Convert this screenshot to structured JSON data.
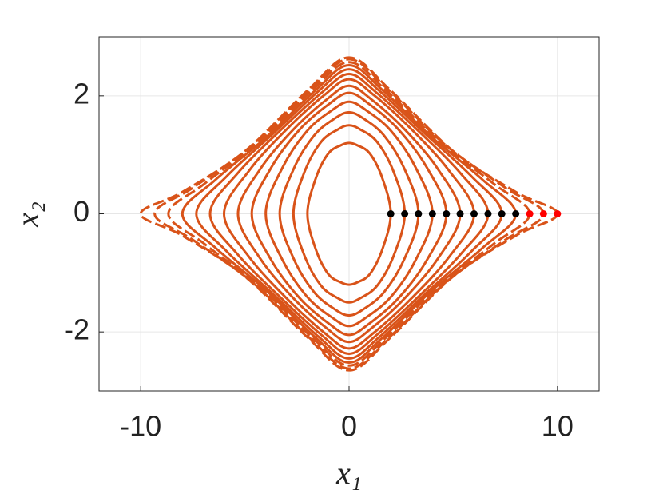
{
  "chart_data": {
    "type": "line",
    "xlabel": "x₁",
    "ylabel": "x₂",
    "xlim": [
      -12,
      12
    ],
    "ylim": [
      -3,
      3
    ],
    "xticks": [
      -10,
      0,
      10
    ],
    "yticks": [
      -2,
      0,
      2
    ],
    "grid": true,
    "series": [
      {
        "color": "#d95319",
        "x": [
          2,
          1.6,
          1,
          0.4,
          0,
          -0.4,
          -1,
          -1.6,
          -2,
          -1.6,
          -1,
          -0.4,
          0,
          0.4,
          1,
          1.6
        ],
        "y": [
          0,
          0.6,
          1.02,
          1.16,
          1.2,
          1.16,
          1.02,
          0.6,
          0,
          -0.6,
          -1.02,
          -1.16,
          -1.2,
          -1.16,
          -1.02,
          -0.6
        ]
      },
      {
        "color": "#d95319",
        "x": [
          2.67,
          2.14,
          1.34,
          0.53,
          0,
          -0.53,
          -1.34,
          -2.14,
          -2.67,
          -2.14,
          -1.34,
          -0.53,
          0,
          0.53,
          1.34,
          2.14
        ],
        "y": [
          0,
          0.71,
          1.22,
          1.43,
          1.5,
          1.43,
          1.22,
          0.71,
          0,
          -0.71,
          -1.22,
          -1.43,
          -1.5,
          -1.43,
          -1.22,
          -0.71
        ]
      },
      {
        "color": "#d95319",
        "x": [
          3.33,
          2.66,
          1.67,
          0.67,
          0,
          -0.67,
          -1.67,
          -2.66,
          -3.33,
          -2.66,
          -1.67,
          -0.67,
          0,
          0.67,
          1.67,
          2.66
        ],
        "y": [
          0,
          0.76,
          1.33,
          1.62,
          1.72,
          1.62,
          1.33,
          0.76,
          0,
          -0.76,
          -1.33,
          -1.62,
          -1.72,
          -1.62,
          -1.33,
          -0.76
        ]
      },
      {
        "color": "#d95319",
        "x": [
          4,
          3.2,
          2,
          0.8,
          0,
          -0.8,
          -2,
          -3.2,
          -4,
          -3.2,
          -2,
          -0.8,
          0,
          0.8,
          2,
          3.2
        ],
        "y": [
          0,
          0.78,
          1.41,
          1.76,
          1.9,
          1.76,
          1.41,
          0.78,
          0,
          -0.78,
          -1.41,
          -1.76,
          -1.9,
          -1.76,
          -1.41,
          -0.78
        ]
      },
      {
        "color": "#d95319",
        "x": [
          4.67,
          3.74,
          2.34,
          0.93,
          0,
          -0.93,
          -2.34,
          -3.74,
          -4.67,
          -3.74,
          -2.34,
          -0.93,
          0,
          0.93,
          2.34,
          3.74
        ],
        "y": [
          0,
          0.78,
          1.44,
          1.87,
          2.05,
          1.87,
          1.44,
          0.78,
          0,
          -0.78,
          -1.44,
          -1.87,
          -2.05,
          -1.87,
          -1.44,
          -0.78
        ]
      },
      {
        "color": "#d95319",
        "x": [
          5.33,
          4.26,
          2.67,
          1.07,
          0,
          -1.07,
          -2.67,
          -4.26,
          -5.33,
          -4.26,
          -2.67,
          -1.07,
          0,
          1.07,
          2.67,
          4.26
        ],
        "y": [
          0,
          0.76,
          1.43,
          1.94,
          2.17,
          1.94,
          1.43,
          0.76,
          0,
          -0.76,
          -1.43,
          -1.94,
          -2.17,
          -1.94,
          -1.43,
          -0.76
        ]
      },
      {
        "color": "#d95319",
        "x": [
          6,
          4.8,
          3,
          1.2,
          0,
          -1.2,
          -3,
          -4.8,
          -6,
          -4.8,
          -3,
          -1.2,
          0,
          1.2,
          3,
          4.8
        ],
        "y": [
          0,
          0.73,
          1.43,
          2.01,
          2.28,
          2.01,
          1.43,
          0.73,
          0,
          -0.73,
          -1.43,
          -2.01,
          -2.28,
          -2.01,
          -1.43,
          -0.73
        ]
      },
      {
        "color": "#d95319",
        "x": [
          6.67,
          5.34,
          3.34,
          1.33,
          0,
          -1.33,
          -3.34,
          -5.34,
          -6.67,
          -5.34,
          -3.34,
          -1.33,
          0,
          1.33,
          3.34,
          5.34
        ],
        "y": [
          0,
          0.69,
          1.4,
          2.05,
          2.37,
          2.05,
          1.4,
          0.69,
          0,
          -0.69,
          -1.4,
          -2.05,
          -2.37,
          -2.05,
          -1.4,
          -0.69
        ]
      },
      {
        "color": "#d95319",
        "x": [
          7.33,
          5.86,
          3.67,
          1.47,
          0,
          -1.47,
          -3.67,
          -5.86,
          -7.33,
          -5.86,
          -3.67,
          -1.47,
          0,
          1.47,
          3.67,
          5.86
        ],
        "y": [
          0,
          0.64,
          1.35,
          2.08,
          2.45,
          2.08,
          1.35,
          0.64,
          0,
          -0.64,
          -1.35,
          -2.08,
          -2.45,
          -2.08,
          -1.35,
          -0.64
        ]
      },
      {
        "color": "#d95319",
        "x": [
          8,
          6.4,
          4,
          1.6,
          0,
          -1.6,
          -4,
          -6.4,
          -8,
          -6.4,
          -4,
          -1.6,
          0,
          1.6,
          4,
          6.4
        ],
        "y": [
          0,
          0.58,
          1.29,
          2.1,
          2.52,
          2.1,
          1.29,
          0.58,
          0,
          -0.58,
          -1.29,
          -2.1,
          -2.52,
          -2.1,
          -1.29,
          -0.58
        ]
      },
      {
        "color": "#d95319",
        "dashed": true,
        "x": [
          8.67,
          6.94,
          4.34,
          1.73,
          0,
          -1.73,
          -4.34,
          -6.94,
          -8.67,
          -6.94,
          -4.34,
          -1.73,
          0,
          1.73,
          4.34,
          6.94
        ],
        "y": [
          0,
          0.51,
          1.22,
          2.11,
          2.57,
          2.11,
          1.22,
          0.51,
          0,
          -0.51,
          -1.22,
          -2.11,
          -2.57,
          -2.11,
          -1.22,
          -0.51
        ]
      },
      {
        "color": "#d95319",
        "dashed": true,
        "x": [
          9.33,
          7.46,
          4.67,
          1.87,
          0,
          -1.87,
          -4.67,
          -7.46,
          -9.33,
          -7.46,
          -4.67,
          -1.87,
          0,
          1.87,
          4.67,
          7.46
        ],
        "y": [
          0,
          0.45,
          1.15,
          2.11,
          2.62,
          2.11,
          1.15,
          0.45,
          0,
          -0.45,
          -1.15,
          -2.11,
          -2.62,
          -2.11,
          -1.15,
          -0.45
        ]
      },
      {
        "color": "#d95319",
        "dashed": true,
        "x": [
          10,
          8,
          5,
          2,
          0,
          -2,
          -5,
          -8,
          -10,
          -8,
          -5,
          -2,
          0,
          2,
          5,
          8
        ],
        "y": [
          0,
          0.37,
          1.06,
          2.09,
          2.65,
          2.09,
          1.06,
          0.37,
          0,
          -0.37,
          -1.06,
          -2.09,
          -2.65,
          -2.09,
          -1.06,
          -0.37
        ]
      }
    ],
    "points": {
      "x": [
        2,
        2.67,
        3.33,
        4,
        4.67,
        5.33,
        6,
        6.67,
        7.33,
        8,
        8.67,
        9.33,
        10
      ],
      "y": [
        0,
        0,
        0,
        0,
        0,
        0,
        0,
        0,
        0,
        0,
        0,
        0,
        0
      ],
      "colors": [
        "#000000",
        "#000000",
        "#000000",
        "#000000",
        "#000000",
        "#000000",
        "#000000",
        "#000000",
        "#000000",
        "#000000",
        "#ff0000",
        "#ff0000",
        "#ff0000"
      ]
    }
  }
}
